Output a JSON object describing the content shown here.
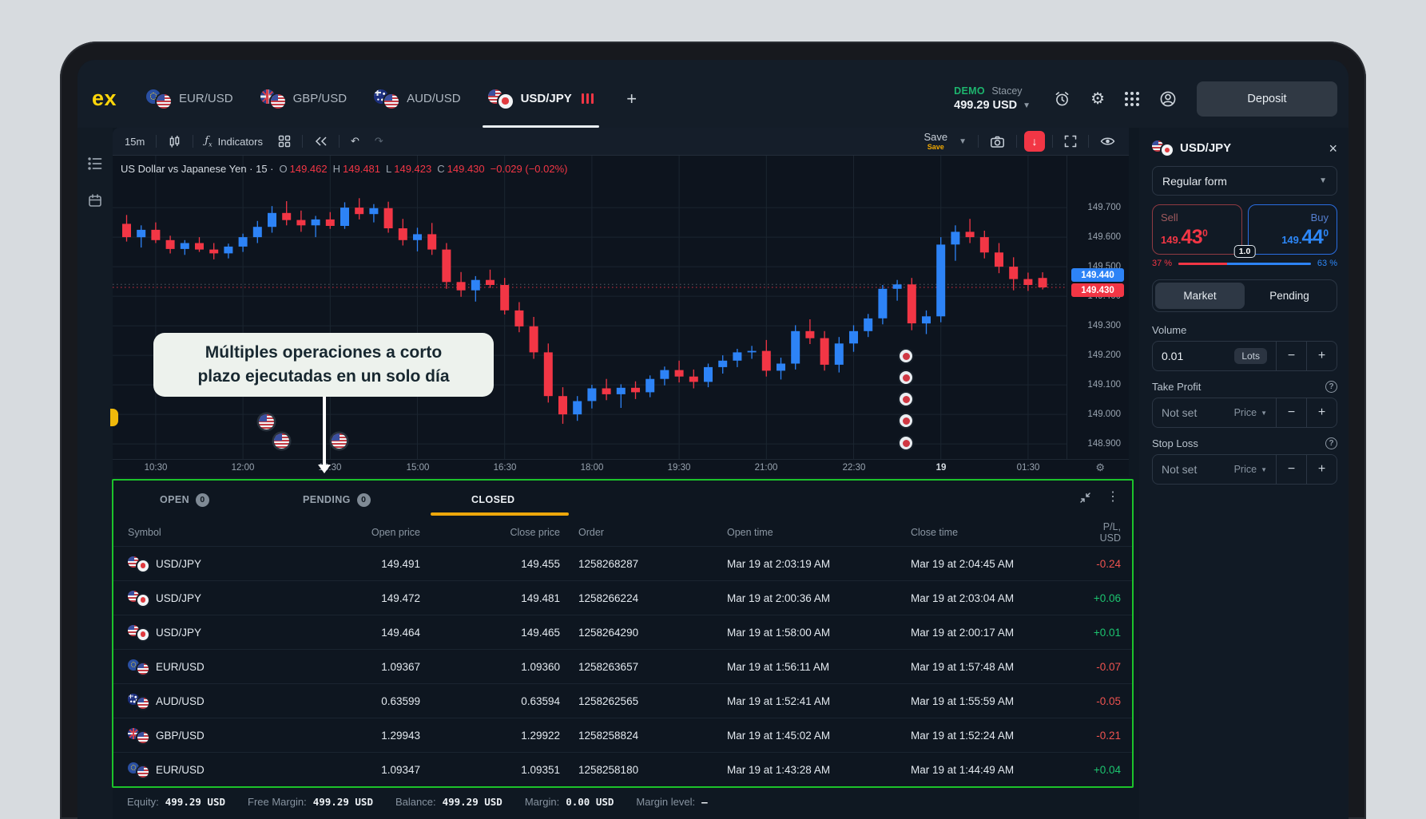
{
  "colors": {
    "up_blue": "#2d83f6",
    "down_red": "#f23645",
    "highlight_green": "#1cc32a",
    "closed_tab_yellow": "#eda70b",
    "demo_green": "#1db56e",
    "logo_yellow": "#ffd60a"
  },
  "topbar": {
    "logo": "ex",
    "tabs": [
      {
        "label": "EUR/USD",
        "flags": [
          "eu",
          "us"
        ],
        "active": false
      },
      {
        "label": "GBP/USD",
        "flags": [
          "gb",
          "us"
        ],
        "active": false
      },
      {
        "label": "AUD/USD",
        "flags": [
          "au",
          "us"
        ],
        "active": false
      },
      {
        "label": "USD/JPY",
        "flags": [
          "us",
          "jp"
        ],
        "active": true,
        "indicator": "red-bars"
      }
    ],
    "plus_label": "+",
    "account": {
      "mode": "DEMO",
      "name": "Stacey",
      "balance": "499.29 USD"
    },
    "deposit_label": "Deposit"
  },
  "chart": {
    "toolbar": {
      "timeframe": "15m",
      "indicators_label": "Indicators",
      "save_label": "Save",
      "save_sub_label": "Save"
    },
    "legend": {
      "title": "US Dollar vs Japanese Yen · 15 ·",
      "o_label": "O",
      "o": "149.462",
      "h_label": "H",
      "h": "149.481",
      "l_label": "L",
      "l": "149.423",
      "c_label": "C",
      "c": "149.430",
      "change": "−0.029 (−0.02%)"
    },
    "price_axis": [
      "149.700",
      "149.600",
      "149.500",
      "149.400",
      "149.300",
      "149.200",
      "149.100",
      "149.000",
      "148.900"
    ],
    "badges": {
      "ask": {
        "value": "149.440",
        "color": "#2d83f6"
      },
      "bid": {
        "value": "149.430",
        "color": "#f23645"
      }
    },
    "time_axis": [
      {
        "t": "10:30",
        "i": 2
      },
      {
        "t": "12:00",
        "i": 8
      },
      {
        "t": "13:30",
        "i": 14
      },
      {
        "t": "15:00",
        "i": 20
      },
      {
        "t": "16:30",
        "i": 26
      },
      {
        "t": "18:00",
        "i": 32
      },
      {
        "t": "19:30",
        "i": 38
      },
      {
        "t": "21:00",
        "i": 44
      },
      {
        "t": "22:30",
        "i": 50
      },
      {
        "t": "19",
        "i": 56,
        "bold": true
      },
      {
        "t": "01:30",
        "i": 62
      }
    ]
  },
  "chart_data": {
    "type": "candlestick",
    "symbol": "USD/JPY",
    "interval": "15m",
    "start_time": "10:00",
    "interval_minutes": 15,
    "ylim": [
      148.85,
      149.88
    ],
    "current_bid": 149.43,
    "current_ask": 149.44,
    "candles": [
      [
        149.645,
        149.675,
        149.585,
        149.6
      ],
      [
        149.6,
        149.64,
        149.565,
        149.625
      ],
      [
        149.625,
        149.65,
        149.58,
        149.59
      ],
      [
        149.59,
        149.605,
        149.545,
        149.56
      ],
      [
        149.56,
        149.59,
        149.54,
        149.58
      ],
      [
        149.58,
        149.6,
        149.55,
        149.558
      ],
      [
        149.558,
        149.58,
        149.525,
        149.545
      ],
      [
        149.545,
        149.578,
        149.528,
        149.568
      ],
      [
        149.568,
        149.612,
        149.55,
        149.6
      ],
      [
        149.6,
        149.655,
        149.58,
        149.635
      ],
      [
        149.635,
        149.705,
        149.615,
        149.682
      ],
      [
        149.682,
        149.722,
        149.64,
        149.658
      ],
      [
        149.658,
        149.69,
        149.618,
        149.64
      ],
      [
        149.64,
        149.672,
        149.6,
        149.66
      ],
      [
        149.66,
        149.685,
        149.628,
        149.638
      ],
      [
        149.638,
        149.718,
        149.628,
        149.7
      ],
      [
        149.7,
        149.732,
        149.66,
        149.678
      ],
      [
        149.678,
        149.712,
        149.65,
        149.698
      ],
      [
        149.698,
        149.72,
        149.615,
        149.63
      ],
      [
        149.63,
        149.662,
        149.572,
        149.59
      ],
      [
        149.59,
        149.632,
        149.552,
        149.61
      ],
      [
        149.61,
        149.648,
        149.54,
        149.558
      ],
      [
        149.558,
        149.58,
        149.425,
        149.448
      ],
      [
        149.448,
        149.482,
        149.398,
        149.42
      ],
      [
        149.42,
        149.468,
        149.382,
        149.455
      ],
      [
        149.455,
        149.49,
        149.428,
        149.438
      ],
      [
        149.438,
        149.462,
        149.338,
        149.352
      ],
      [
        149.352,
        149.38,
        149.278,
        149.298
      ],
      [
        149.298,
        149.33,
        149.188,
        149.21
      ],
      [
        149.21,
        149.24,
        149.04,
        149.062
      ],
      [
        149.062,
        149.092,
        148.968,
        149.0
      ],
      [
        149.0,
        149.062,
        148.978,
        149.045
      ],
      [
        149.045,
        149.1,
        149.02,
        149.088
      ],
      [
        149.088,
        149.12,
        149.048,
        149.068
      ],
      [
        149.068,
        149.102,
        149.022,
        149.09
      ],
      [
        149.09,
        149.112,
        149.052,
        149.075
      ],
      [
        149.075,
        149.132,
        149.058,
        149.12
      ],
      [
        149.12,
        149.162,
        149.098,
        149.15
      ],
      [
        149.15,
        149.182,
        149.108,
        149.128
      ],
      [
        149.128,
        149.152,
        149.088,
        149.11
      ],
      [
        149.11,
        149.172,
        149.092,
        149.16
      ],
      [
        149.16,
        149.2,
        149.138,
        149.182
      ],
      [
        149.182,
        149.222,
        149.16,
        149.21
      ],
      [
        149.21,
        149.232,
        149.188,
        149.215
      ],
      [
        149.215,
        149.252,
        149.128,
        149.148
      ],
      [
        149.148,
        149.192,
        149.118,
        149.172
      ],
      [
        149.172,
        149.302,
        149.152,
        149.282
      ],
      [
        149.282,
        149.322,
        149.238,
        149.258
      ],
      [
        149.258,
        149.282,
        149.148,
        149.168
      ],
      [
        149.168,
        149.262,
        149.142,
        149.24
      ],
      [
        149.24,
        149.302,
        149.212,
        149.282
      ],
      [
        149.282,
        149.34,
        149.262,
        149.325
      ],
      [
        149.325,
        149.438,
        149.305,
        149.425
      ],
      [
        149.425,
        149.455,
        149.385,
        149.44
      ],
      [
        149.44,
        149.462,
        149.285,
        149.308
      ],
      [
        149.308,
        149.352,
        149.272,
        149.332
      ],
      [
        149.332,
        149.6,
        149.312,
        149.575
      ],
      [
        149.575,
        149.64,
        149.52,
        149.618
      ],
      [
        149.618,
        149.662,
        149.58,
        149.6
      ],
      [
        149.6,
        149.622,
        149.528,
        149.548
      ],
      [
        149.548,
        149.58,
        149.478,
        149.5
      ],
      [
        149.5,
        149.532,
        149.42,
        149.458
      ],
      [
        149.458,
        149.48,
        149.418,
        149.438
      ],
      [
        149.462,
        149.481,
        149.423,
        149.43
      ]
    ],
    "markers": {
      "trade_dots": [
        {
          "i": 53.6,
          "price": 149.197
        },
        {
          "i": 53.6,
          "price": 149.124
        },
        {
          "i": 53.6,
          "price": 149.051
        },
        {
          "i": 53.6,
          "price": 148.978
        },
        {
          "i": 53.6,
          "price": 148.902
        }
      ],
      "flag_dots": [
        {
          "i": 9.6,
          "price": 148.975,
          "flag": "us"
        },
        {
          "i": 9.6,
          "price": 148.91,
          "flag": "us"
        },
        {
          "i": 12.5,
          "price": 148.91,
          "flag": "us"
        }
      ]
    }
  },
  "annotation": {
    "line1": "Múltiples operaciones a corto",
    "line2": "plazo ejecutadas en un solo día"
  },
  "order_panel": {
    "symbol": "USD/JPY",
    "form_select": "Regular form",
    "sell": {
      "label": "Sell",
      "price_main": "149.",
      "price_big": "43",
      "price_sup": "0"
    },
    "buy": {
      "label": "Buy",
      "price_main": "149.",
      "price_big": "44",
      "price_sup": "0"
    },
    "spread": "1.0",
    "sell_pct": "37 %",
    "buy_pct": "63 %",
    "sell_ratio_pct": 37,
    "tabs": {
      "market": "Market",
      "pending": "Pending"
    },
    "volume": {
      "label": "Volume",
      "value": "0.01",
      "unit": "Lots"
    },
    "take_profit": {
      "label": "Take Profit",
      "value": "Not set",
      "mode": "Price"
    },
    "stop_loss": {
      "label": "Stop Loss",
      "value": "Not set",
      "mode": "Price"
    }
  },
  "positions_table": {
    "tabs": [
      {
        "label": "OPEN",
        "count": "0",
        "active": false
      },
      {
        "label": "PENDING",
        "count": "0",
        "active": false
      },
      {
        "label": "CLOSED",
        "active": true
      }
    ],
    "columns": [
      "Symbol",
      "Open price",
      "Close price",
      "Order",
      "Open time",
      "Close time",
      "P/L, USD"
    ],
    "rows": [
      {
        "symbol": "USD/JPY",
        "flags": [
          "us",
          "jp"
        ],
        "open": "149.491",
        "close": "149.455",
        "order": "1258268287",
        "open_time": "Mar 19 at 2:03:19 AM",
        "close_time": "Mar 19 at 2:04:45 AM",
        "pl": "-0.24"
      },
      {
        "symbol": "USD/JPY",
        "flags": [
          "us",
          "jp"
        ],
        "open": "149.472",
        "close": "149.481",
        "order": "1258266224",
        "open_time": "Mar 19 at 2:00:36 AM",
        "close_time": "Mar 19 at 2:03:04 AM",
        "pl": "+0.06"
      },
      {
        "symbol": "USD/JPY",
        "flags": [
          "us",
          "jp"
        ],
        "open": "149.464",
        "close": "149.465",
        "order": "1258264290",
        "open_time": "Mar 19 at 1:58:00 AM",
        "close_time": "Mar 19 at 2:00:17 AM",
        "pl": "+0.01"
      },
      {
        "symbol": "EUR/USD",
        "flags": [
          "eu",
          "us"
        ],
        "open": "1.09367",
        "close": "1.09360",
        "order": "1258263657",
        "open_time": "Mar 19 at 1:56:11 AM",
        "close_time": "Mar 19 at 1:57:48 AM",
        "pl": "-0.07"
      },
      {
        "symbol": "AUD/USD",
        "flags": [
          "au",
          "us"
        ],
        "open": "0.63599",
        "close": "0.63594",
        "order": "1258262565",
        "open_time": "Mar 19 at 1:52:41 AM",
        "close_time": "Mar 19 at 1:55:59 AM",
        "pl": "-0.05"
      },
      {
        "symbol": "GBP/USD",
        "flags": [
          "gb",
          "us"
        ],
        "open": "1.29943",
        "close": "1.29922",
        "order": "1258258824",
        "open_time": "Mar 19 at 1:45:02 AM",
        "close_time": "Mar 19 at 1:52:24 AM",
        "pl": "-0.21"
      },
      {
        "symbol": "EUR/USD",
        "flags": [
          "eu",
          "us"
        ],
        "open": "1.09347",
        "close": "1.09351",
        "order": "1258258180",
        "open_time": "Mar 19 at 1:43:28 AM",
        "close_time": "Mar 19 at 1:44:49 AM",
        "pl": "+0.04"
      }
    ]
  },
  "status_bar": {
    "items": [
      {
        "label": "Equity:",
        "value": "499.29 USD"
      },
      {
        "label": "Free Margin:",
        "value": "499.29 USD"
      },
      {
        "label": "Balance:",
        "value": "499.29 USD"
      },
      {
        "label": "Margin:",
        "value": "0.00 USD"
      },
      {
        "label": "Margin level:",
        "value": "–"
      }
    ]
  },
  "version": "3.0.3"
}
